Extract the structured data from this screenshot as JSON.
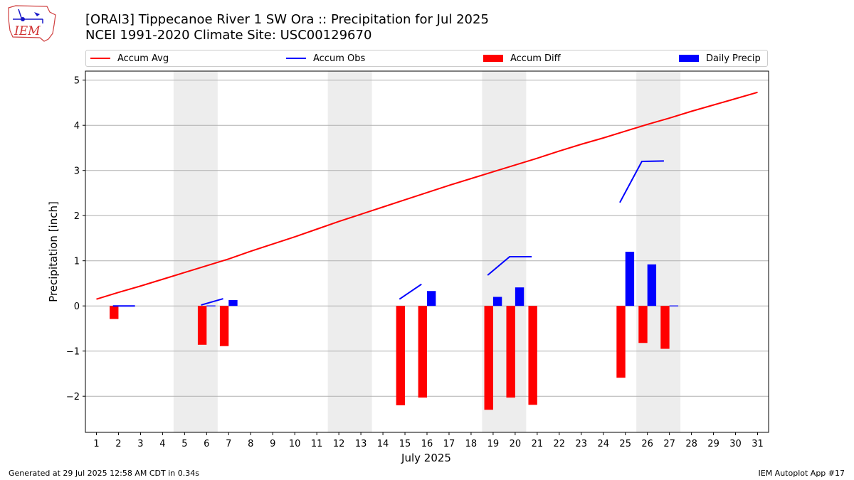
{
  "header": {
    "title_line1": "[ORAI3] Tippecanoe River 1 SW Ora :: Precipitation for Jul 2025",
    "title_line2": "NCEI 1991-2020 Climate Site: USC00129670",
    "logo_text": "IEM"
  },
  "footer": {
    "left": "Generated at 29 Jul 2025 12:58 AM CDT in 0.34s",
    "right": "IEM Autoplot App #17"
  },
  "colors": {
    "accum_avg": "#ff0000",
    "accum_obs": "#0000ff",
    "accum_diff": "#ff0000",
    "daily_precip": "#0000ff",
    "weekend_shade": "#ededed",
    "grid": "#b0b0b0"
  },
  "chart_data": {
    "type": "bar",
    "title": "[ORAI3] Tippecanoe River 1 SW Ora :: Precipitation for Jul 2025",
    "subtitle": "NCEI 1991-2020 Climate Site: USC00129670",
    "xlabel": "July 2025",
    "ylabel": "Precipitation [inch]",
    "xlim": [
      0.5,
      31.5
    ],
    "ylim": [
      -2.8,
      5.2
    ],
    "yticks": [
      -2,
      -1,
      0,
      1,
      2,
      3,
      4,
      5
    ],
    "ytick_labels": [
      "−2",
      "−1",
      "0",
      "1",
      "2",
      "3",
      "4",
      "5"
    ],
    "days": [
      1,
      2,
      3,
      4,
      5,
      6,
      7,
      8,
      9,
      10,
      11,
      12,
      13,
      14,
      15,
      16,
      17,
      18,
      19,
      20,
      21,
      22,
      23,
      24,
      25,
      26,
      27,
      28,
      29,
      30,
      31
    ],
    "grid": "y-axis major ticks",
    "legend_position": "top, above plot, 4 columns",
    "shaded_day_ranges": [
      [
        4.5,
        6.5
      ],
      [
        11.5,
        13.5
      ],
      [
        18.5,
        20.5
      ],
      [
        25.5,
        27.5
      ]
    ],
    "series": [
      {
        "name": "Accum Avg",
        "type": "line",
        "x": [
          1,
          2,
          3,
          4,
          5,
          6,
          7,
          8,
          9,
          10,
          11,
          12,
          13,
          14,
          15,
          16,
          17,
          18,
          19,
          20,
          21,
          22,
          23,
          24,
          25,
          26,
          27,
          28,
          29,
          30,
          31
        ],
        "values": [
          0.15,
          0.3,
          0.44,
          0.59,
          0.74,
          0.89,
          1.04,
          1.21,
          1.37,
          1.53,
          1.7,
          1.87,
          2.03,
          2.19,
          2.35,
          2.51,
          2.67,
          2.82,
          2.97,
          3.12,
          3.27,
          3.43,
          3.58,
          3.72,
          3.87,
          4.02,
          4.16,
          4.31,
          4.45,
          4.59,
          4.73
        ]
      },
      {
        "name": "Accum Obs",
        "type": "line",
        "segments": [
          {
            "x": [
              1.75,
              2.75
            ],
            "values": [
              0.0,
              0.0
            ]
          },
          {
            "x": [
              5.75,
              6.75
            ],
            "values": [
              0.02,
              0.16
            ]
          },
          {
            "x": [
              14.75,
              15.75
            ],
            "values": [
              0.15,
              0.48
            ]
          },
          {
            "x": [
              18.75,
              19.75,
              20.75
            ],
            "values": [
              0.68,
              1.09,
              1.09
            ]
          },
          {
            "x": [
              24.75,
              25.75,
              26.75
            ],
            "values": [
              2.29,
              3.2,
              3.21
            ]
          }
        ]
      },
      {
        "name": "Accum Diff",
        "type": "bar",
        "x": [
          2,
          6,
          7,
          15,
          16,
          19,
          20,
          21,
          25,
          26,
          27
        ],
        "values": [
          -0.29,
          -0.86,
          -0.89,
          -2.2,
          -2.03,
          -2.3,
          -2.03,
          -2.19,
          -1.59,
          -0.82,
          -0.95
        ]
      },
      {
        "name": "Daily Precip",
        "type": "bar",
        "x": [
          2,
          6,
          7,
          15,
          16,
          19,
          20,
          21,
          25,
          26,
          27
        ],
        "values": [
          0.01,
          0.01,
          0.13,
          0.0,
          0.33,
          0.2,
          0.41,
          0.0,
          1.2,
          0.92,
          0.01
        ]
      }
    ]
  }
}
